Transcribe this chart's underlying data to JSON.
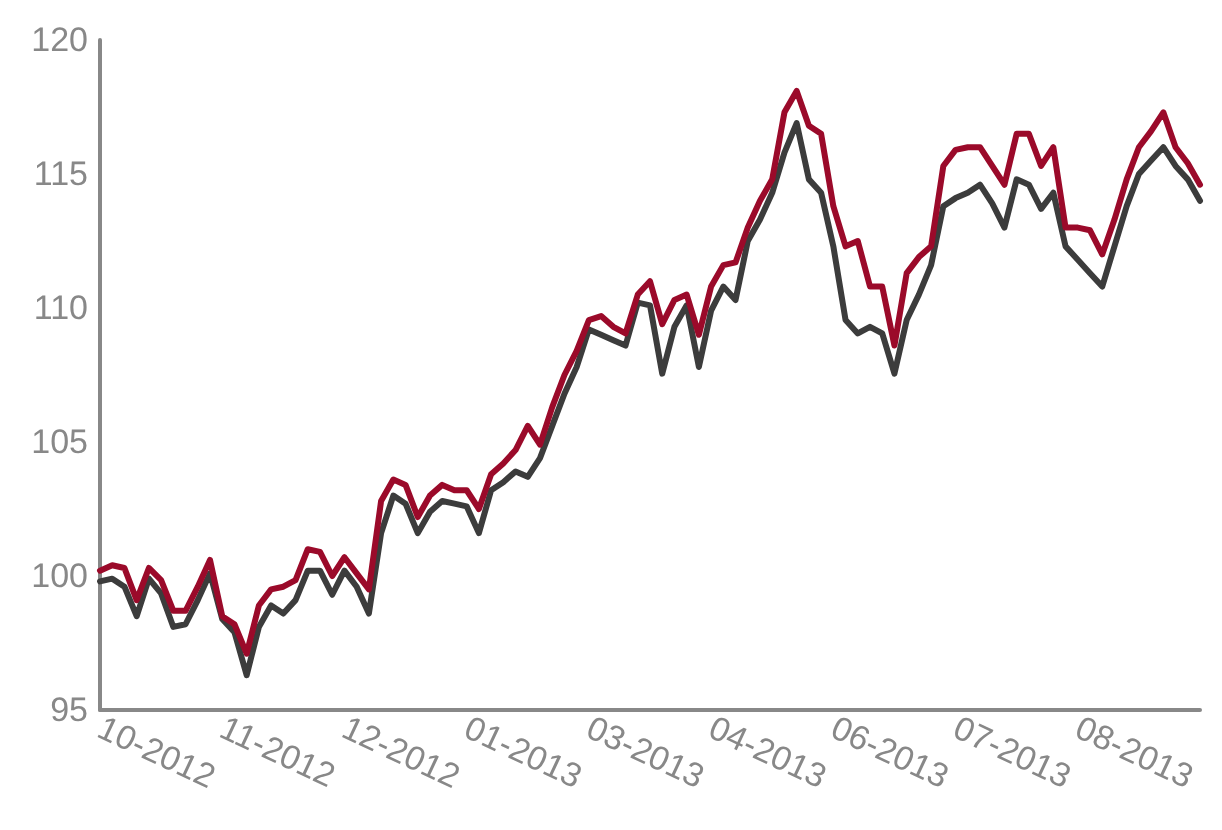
{
  "chart_data": {
    "type": "line",
    "categories": [
      "10-2012",
      null,
      null,
      null,
      null,
      null,
      null,
      null,
      null,
      null,
      "11-2012",
      null,
      null,
      null,
      null,
      null,
      null,
      null,
      null,
      null,
      "12-2012",
      null,
      null,
      null,
      null,
      null,
      null,
      null,
      null,
      null,
      "01-2013",
      null,
      null,
      null,
      null,
      null,
      null,
      null,
      null,
      null,
      "03-2013",
      null,
      null,
      null,
      null,
      null,
      null,
      null,
      null,
      null,
      "04-2013",
      null,
      null,
      null,
      null,
      null,
      null,
      null,
      null,
      null,
      "06-2013",
      null,
      null,
      null,
      null,
      null,
      null,
      null,
      null,
      null,
      "07-2013",
      null,
      null,
      null,
      null,
      null,
      null,
      null,
      null,
      null,
      "08-2013",
      null,
      null,
      null,
      null,
      null,
      null,
      null,
      null,
      null,
      null
    ],
    "series": [
      {
        "color": "#3c3c3c",
        "values": [
          99.8,
          99.9,
          99.6,
          98.5,
          99.9,
          99.35,
          98.1,
          98.2,
          99.1,
          100.1,
          98.4,
          97.9,
          96.3,
          98.1,
          98.9,
          98.6,
          99.1,
          100.2,
          100.2,
          99.3,
          100.2,
          99.6,
          98.6,
          101.6,
          103,
          102.7,
          101.6,
          102.4,
          102.8,
          102.7,
          102.6,
          101.6,
          103.2,
          103.5,
          103.9,
          103.7,
          104.4,
          105.6,
          106.8,
          107.8,
          109.2,
          109,
          108.8,
          108.6,
          110.2,
          110.1,
          107.55,
          109.3,
          110.1,
          107.8,
          109.9,
          110.8,
          110.3,
          112.5,
          113.3,
          114.3,
          115.8,
          116.9,
          114.8,
          114.3,
          112.3,
          109.55,
          109.05,
          109.3,
          109.05,
          107.55,
          109.55,
          110.5,
          111.6,
          113.8,
          114.1,
          114.3,
          114.6,
          113.9,
          113,
          114.8,
          114.6,
          113.7,
          114.3,
          112.3,
          111.8,
          111.3,
          110.8,
          112.3,
          113.8,
          115,
          115.5,
          116,
          115.3,
          114.8,
          114
        ]
      },
      {
        "color": "#9b0a2a",
        "values": [
          100.2,
          100.4,
          100.3,
          99.1,
          100.3,
          99.85,
          98.7,
          98.7,
          99.6,
          100.6,
          98.5,
          98.2,
          97.1,
          98.9,
          99.5,
          99.6,
          99.85,
          101,
          100.9,
          100,
          100.7,
          100.1,
          99.5,
          102.8,
          103.6,
          103.4,
          102.2,
          103,
          103.4,
          103.2,
          103.2,
          102.5,
          103.8,
          104.2,
          104.7,
          105.6,
          104.9,
          106.3,
          107.5,
          108.4,
          109.55,
          109.7,
          109.3,
          109.05,
          110.5,
          111,
          109.4,
          110.3,
          110.5,
          109,
          110.8,
          111.6,
          111.7,
          113,
          114,
          114.8,
          117.3,
          118.1,
          116.8,
          116.5,
          113.8,
          112.3,
          112.5,
          110.8,
          110.8,
          108.6,
          111.3,
          111.9,
          112.3,
          115.3,
          115.9,
          116,
          116,
          115.3,
          114.6,
          116.5,
          116.5,
          115.3,
          116,
          113,
          113,
          112.9,
          112,
          113.3,
          114.8,
          116,
          116.6,
          117.3,
          116,
          115.4,
          114.6
        ]
      }
    ],
    "ylim": [
      95,
      120
    ],
    "yticks": [
      95,
      100,
      105,
      110,
      115,
      120
    ],
    "grid": false,
    "marker": "none",
    "line_style": "solid"
  }
}
